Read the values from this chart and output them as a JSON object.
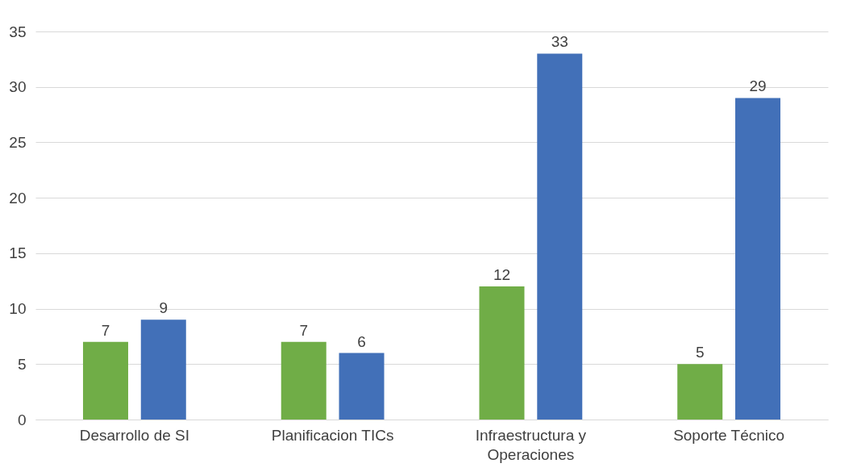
{
  "chart_data": {
    "type": "bar",
    "categories": [
      "Desarrollo de SI",
      "Planificacion TICs",
      "Infraestructura y Operaciones",
      "Soporte Técnico"
    ],
    "series": [
      {
        "color": "#70ad47",
        "values": [
          7,
          7,
          12,
          5
        ]
      },
      {
        "color": "#4270b8",
        "values": [
          9,
          6,
          33,
          29
        ]
      }
    ],
    "ylim": [
      0,
      35
    ],
    "yticks": [
      0,
      5,
      10,
      15,
      20,
      25,
      30,
      35
    ],
    "grid": "y",
    "data_labels": true,
    "legend": false
  }
}
